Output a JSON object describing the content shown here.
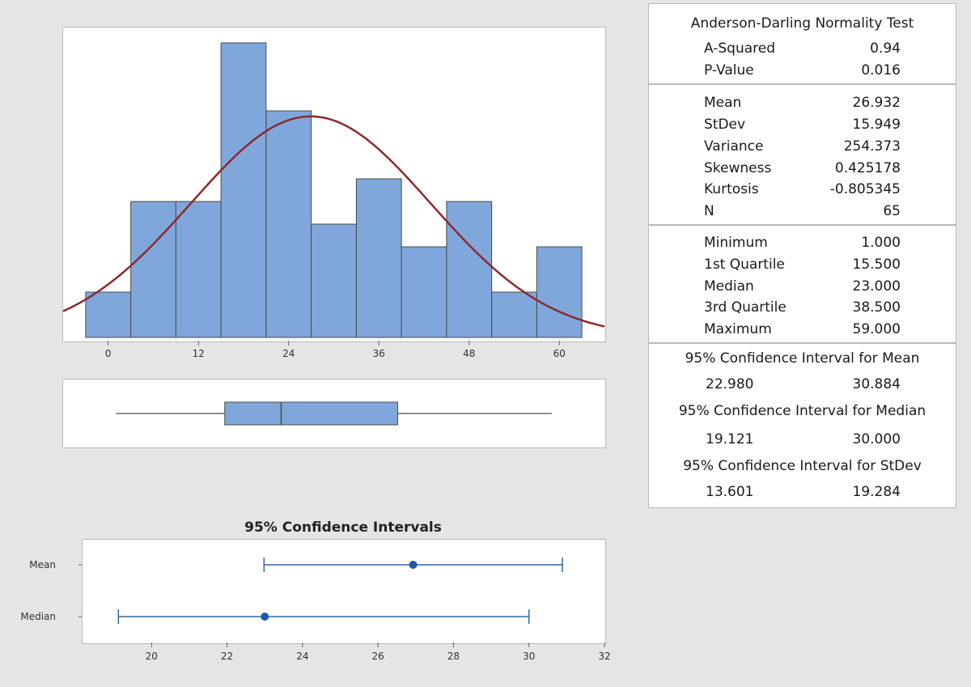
{
  "colors": {
    "bar_fill": "#7fa7dc",
    "bar_stroke": "#4a4a4a",
    "normal_curve": "#8b2a2e",
    "ci_line": "#3366a8",
    "ci_point": "#1f5aa6"
  },
  "chart_data": [
    {
      "type": "bar",
      "subtype": "histogram",
      "bin_width": 6,
      "bin_start": -3,
      "bins": [
        {
          "from": -3,
          "to": 3,
          "count": 2
        },
        {
          "from": 3,
          "to": 9,
          "count": 6
        },
        {
          "from": 9,
          "to": 15,
          "count": 6
        },
        {
          "from": 15,
          "to": 21,
          "count": 13
        },
        {
          "from": 21,
          "to": 27,
          "count": 10
        },
        {
          "from": 27,
          "to": 33,
          "count": 5
        },
        {
          "from": 33,
          "to": 39,
          "count": 7
        },
        {
          "from": 39,
          "to": 45,
          "count": 4
        },
        {
          "from": 45,
          "to": 51,
          "count": 6
        },
        {
          "from": 51,
          "to": 57,
          "count": 2
        },
        {
          "from": 57,
          "to": 63,
          "count": 4
        }
      ],
      "normal_fit": {
        "mean": 26.932,
        "stdev": 15.949
      },
      "xticks": [
        "0",
        "12",
        "24",
        "36",
        "48",
        "60"
      ],
      "xlim": [
        -6,
        66
      ],
      "ylim": [
        0,
        13
      ]
    },
    {
      "type": "boxplot",
      "min": 1.0,
      "q1": 15.5,
      "median": 23.0,
      "q3": 38.5,
      "max": 59.0,
      "xlim": [
        -6,
        66
      ]
    },
    {
      "type": "scatter",
      "subtype": "interval_plot",
      "title": "95% Confidence Intervals",
      "series": [
        {
          "name": "Mean",
          "point": 26.932,
          "lower": 22.98,
          "upper": 30.884
        },
        {
          "name": "Median",
          "point": 23.0,
          "lower": 19.121,
          "upper": 30.0
        }
      ],
      "xticks": [
        "20",
        "22",
        "24",
        "26",
        "28",
        "30",
        "32"
      ],
      "xlim": [
        18.15,
        32.0
      ]
    }
  ],
  "stats_panel": {
    "ad_title": "Anderson-Darling Normality Test",
    "ad_rows": [
      {
        "label": "A-Squared",
        "value": "0.94"
      },
      {
        "label": "P-Value",
        "value": "0.016"
      }
    ],
    "desc_rows": [
      {
        "label": "Mean",
        "value": "26.932"
      },
      {
        "label": "StDev",
        "value": "15.949"
      },
      {
        "label": "Variance",
        "value": "254.373"
      },
      {
        "label": "Skewness",
        "value": "0.425178"
      },
      {
        "label": "Kurtosis",
        "value": "-0.805345"
      },
      {
        "label": "N",
        "value": "65"
      }
    ],
    "quart_rows": [
      {
        "label": "Minimum",
        "value": "1.000"
      },
      {
        "label": "1st Quartile",
        "value": "15.500"
      },
      {
        "label": "Median",
        "value": "23.000"
      },
      {
        "label": "3rd Quartile",
        "value": "38.500"
      },
      {
        "label": "Maximum",
        "value": "59.000"
      }
    ],
    "ci_mean_title": "95% Confidence Interval for Mean",
    "ci_mean": {
      "lower": "22.980",
      "upper": "30.884"
    },
    "ci_median_title": "95% Confidence Interval for Median",
    "ci_median": {
      "lower": "19.121",
      "upper": "30.000"
    },
    "ci_stdev_title": "95% Confidence Interval for StDev",
    "ci_stdev": {
      "lower": "13.601",
      "upper": "19.284"
    }
  }
}
